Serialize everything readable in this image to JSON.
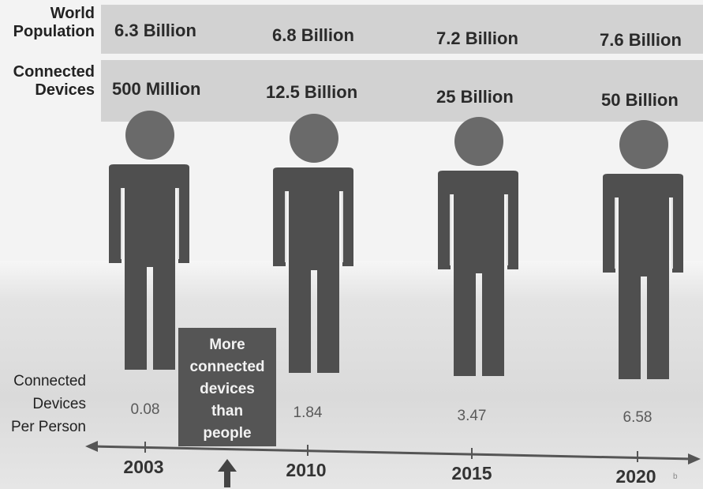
{
  "rows": {
    "population_label": "World\nPopulation",
    "devices_label": "Connected\nDevices",
    "per_person_label": "Connected\nDevices\nPer Person"
  },
  "columns": [
    {
      "year": "2003",
      "population": "6.3 Billion",
      "devices": "500 Million",
      "per_person": "0.08"
    },
    {
      "year": "2010",
      "population": "6.8 Billion",
      "devices": "12.5 Billion",
      "per_person": "1.84"
    },
    {
      "year": "2015",
      "population": "7.2 Billion",
      "devices": "25 Billion",
      "per_person": "3.47"
    },
    {
      "year": "2020",
      "population": "7.6 Billion",
      "devices": "50 Billion",
      "per_person": "6.58"
    }
  ],
  "callout": "More\nconnected\ndevices\nthan\npeople",
  "colors": {
    "figure": "#4f4f4f",
    "head": "#6a6a6a",
    "band": "#d2d2d2",
    "callout_bg": "#555555"
  },
  "footnote": "b"
}
